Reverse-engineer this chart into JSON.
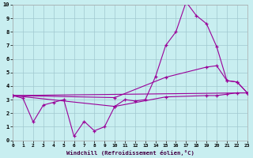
{
  "xlabel": "Windchill (Refroidissement éolien,°C)",
  "bg_color": "#c8eef0",
  "grid_color": "#a0c8d0",
  "line_color": "#990099",
  "xlim": [
    0,
    23
  ],
  "ylim": [
    0,
    10
  ],
  "xticks": [
    0,
    1,
    2,
    3,
    4,
    5,
    6,
    7,
    8,
    9,
    10,
    11,
    12,
    13,
    14,
    15,
    16,
    17,
    18,
    19,
    20,
    21,
    22,
    23
  ],
  "yticks": [
    0,
    1,
    2,
    3,
    4,
    5,
    6,
    7,
    8,
    9,
    10
  ],
  "line1_x": [
    0,
    1,
    2,
    3,
    4,
    5,
    6,
    7,
    8,
    9,
    10,
    11,
    12,
    13,
    14,
    15,
    16,
    17,
    18,
    19,
    20,
    21,
    22,
    23
  ],
  "line1_y": [
    3.3,
    3.1,
    1.35,
    2.6,
    2.8,
    3.0,
    0.3,
    1.4,
    0.7,
    1.0,
    2.5,
    3.0,
    2.9,
    3.0,
    4.7,
    7.0,
    8.0,
    10.2,
    9.2,
    8.6,
    6.9,
    4.4,
    4.3,
    3.5
  ],
  "line2_x": [
    0,
    10,
    15,
    19,
    20,
    21,
    22,
    23
  ],
  "line2_y": [
    3.3,
    3.15,
    4.65,
    5.4,
    5.5,
    4.4,
    4.3,
    3.5
  ],
  "line3_x": [
    0,
    10,
    15,
    19,
    20,
    21,
    22,
    23
  ],
  "line3_y": [
    3.3,
    2.5,
    3.2,
    3.3,
    3.3,
    3.4,
    3.5,
    3.5
  ],
  "line4_x": [
    0,
    23
  ],
  "line4_y": [
    3.3,
    3.5
  ]
}
